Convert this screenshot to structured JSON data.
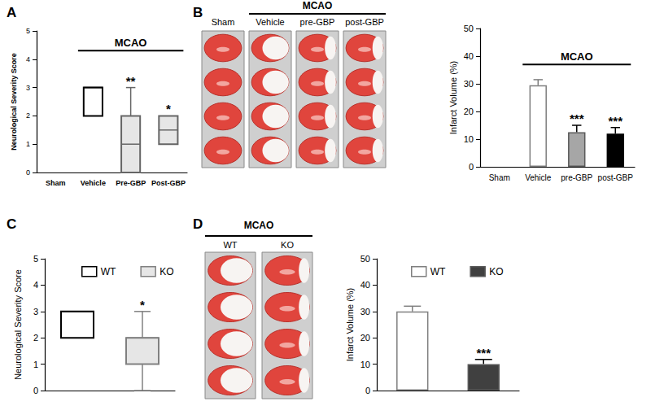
{
  "chart_data": [
    {
      "panel": "A",
      "type": "boxplot",
      "categories": [
        "Sham",
        "Vehicle",
        "Pre-GBP",
        "Post-GBP"
      ],
      "values": [
        null,
        [
          2,
          2,
          3,
          3,
          3
        ],
        [
          0,
          0,
          1,
          2,
          3
        ],
        [
          1,
          1,
          1.5,
          2,
          2
        ]
      ],
      "colors": [
        "#000000",
        "#000000",
        "#666666",
        "#666666"
      ],
      "y_label": "Neurological Severity Score",
      "ylim": [
        0,
        5
      ],
      "yticks": [
        0,
        1,
        2,
        3,
        4,
        5
      ],
      "grid": false,
      "annotations": [
        null,
        null,
        "**",
        "*"
      ],
      "group_label": "MCAO",
      "group_span": [
        "Vehicle",
        "Post-GBP"
      ]
    },
    {
      "panel": "B",
      "type": "bar",
      "categories": [
        "Sham",
        "Vehicle",
        "pre-GBP",
        "post-GBP"
      ],
      "values": [
        null,
        29.5,
        12.5,
        12
      ],
      "errors": [
        null,
        2,
        2.5,
        2.2
      ],
      "colors": [
        "#ffffff",
        "#ffffff",
        "#a6a6a6",
        "#000000"
      ],
      "y_label": "Infarct Volume (%)",
      "ylim": [
        0,
        50
      ],
      "yticks": [
        0,
        10,
        20,
        30,
        40,
        50
      ],
      "grid": false,
      "annotations": [
        null,
        null,
        "***",
        "***"
      ],
      "group_label": "MCAO",
      "group_span": [
        "Vehicle",
        "post-GBP"
      ],
      "images": {
        "labels": [
          "Sham",
          "Vehicle",
          "pre-GBP",
          "post-GBP"
        ],
        "group_label": "MCAO",
        "group_span": [
          "Vehicle",
          "post-GBP"
        ]
      }
    },
    {
      "panel": "C",
      "type": "boxplot",
      "categories": [
        null,
        null
      ],
      "series": [
        {
          "name": "WT",
          "color": "#000000",
          "values": [
            [
              2,
              2,
              3,
              3,
              3
            ],
            null
          ],
          "annotations": [
            null,
            null
          ]
        },
        {
          "name": "KO",
          "color": "#808080",
          "values": [
            null,
            [
              0,
              1,
              2,
              2,
              3
            ]
          ],
          "annotations": [
            null,
            "*"
          ]
        }
      ],
      "y_label": "Neurological Severity Score",
      "ylim": [
        0,
        5
      ],
      "yticks": [
        0,
        1,
        2,
        3,
        4,
        5
      ],
      "grid": false,
      "tick_labels": "y",
      "legend": "top"
    },
    {
      "panel": "D",
      "type": "bar",
      "categories": [
        null,
        null
      ],
      "series": [
        {
          "name": "WT",
          "color": "#ffffff",
          "values": [
            30,
            null
          ],
          "errors": [
            2,
            null
          ],
          "annotations": [
            null,
            null
          ]
        },
        {
          "name": "KO",
          "color": "#404040",
          "values": [
            null,
            10
          ],
          "errors": [
            null,
            1.8
          ],
          "annotations": [
            null,
            "***"
          ]
        }
      ],
      "y_label": "Infarct Volume (%)",
      "ylim": [
        0,
        50
      ],
      "yticks": [
        0,
        10,
        20,
        30,
        40,
        50
      ],
      "grid": false,
      "tick_labels": "y",
      "legend": "top",
      "images": {
        "labels": [
          "WT",
          "KO"
        ],
        "group_label": "MCAO"
      }
    }
  ]
}
